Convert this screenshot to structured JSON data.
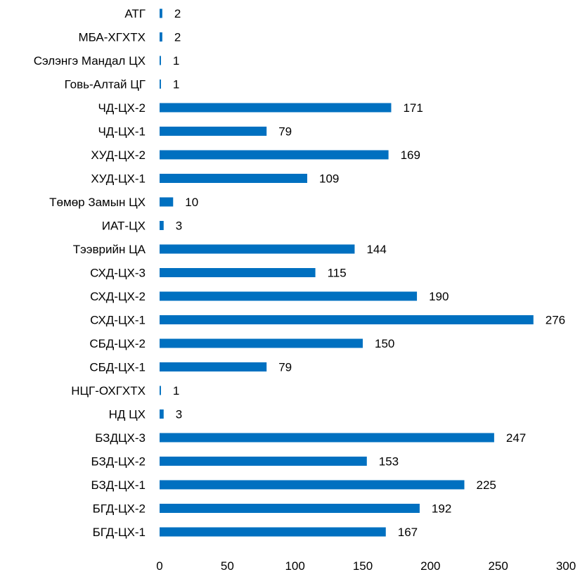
{
  "chart_data": {
    "type": "bar",
    "orientation": "horizontal",
    "title": "",
    "xlabel": "",
    "ylabel": "",
    "categories": [
      "АТГ",
      "МБА-ХГХТХ",
      "Сэлэнгэ Мандал ЦХ",
      "Говь-Алтай ЦГ",
      "ЧД-ЦХ-2",
      "ЧД-ЦХ-1",
      "ХУД-ЦХ-2",
      "ХУД-ЦХ-1",
      "Төмөр Замын ЦХ",
      "ИАТ-ЦХ",
      "Тээврийн ЦА",
      "СХД-ЦХ-3",
      "СХД-ЦХ-2",
      "СХД-ЦХ-1",
      "СБД-ЦХ-2",
      "СБД-ЦХ-1",
      "НЦГ-ОХГХТХ",
      "НД ЦХ",
      "БЗДЦХ-3",
      "БЗД-ЦХ-2",
      "БЗД-ЦХ-1",
      "БГД-ЦХ-2",
      "БГД-ЦХ-1"
    ],
    "values": [
      2,
      2,
      1,
      1,
      171,
      79,
      169,
      109,
      10,
      3,
      144,
      115,
      190,
      276,
      150,
      79,
      1,
      3,
      247,
      153,
      225,
      192,
      167
    ],
    "xlim": [
      0,
      300
    ],
    "xticks": [
      "0",
      "50",
      "100",
      "150",
      "200",
      "250",
      "300"
    ],
    "grid": false,
    "data_labels": true,
    "bar_color": "#0070C0"
  }
}
